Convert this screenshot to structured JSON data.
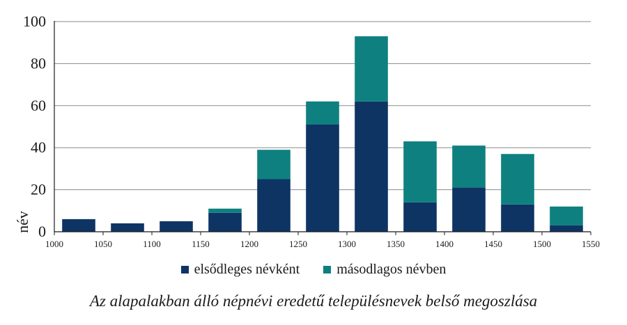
{
  "chart_data": {
    "type": "bar",
    "stacked": true,
    "title": "",
    "caption": "Az alapalakban álló népnévi eredetű településnevek belső megoszlása",
    "xlabel": "",
    "ylabel": "név",
    "xlim": [
      1000,
      1550
    ],
    "ylim": [
      0,
      100
    ],
    "x_ticks": [
      "1000",
      "1050",
      "1100",
      "1150",
      "1200",
      "1250",
      "1300",
      "1350",
      "1400",
      "1450",
      "1500",
      "1550"
    ],
    "y_ticks": [
      "0",
      "20",
      "40",
      "60",
      "80",
      "100"
    ],
    "x_bin_starts": [
      1000,
      1050,
      1100,
      1150,
      1200,
      1250,
      1300,
      1350,
      1400,
      1450,
      1500
    ],
    "grid": true,
    "legend_position": "bottom",
    "series": [
      {
        "name": "elsődleges névként",
        "color": "#0e3463",
        "values": [
          6,
          4,
          5,
          9,
          25,
          51,
          62,
          14,
          21,
          13,
          3
        ]
      },
      {
        "name": "másodlagos névben",
        "color": "#0f8080",
        "values": [
          0,
          0,
          0,
          2,
          14,
          11,
          31,
          29,
          20,
          24,
          9
        ]
      }
    ]
  }
}
